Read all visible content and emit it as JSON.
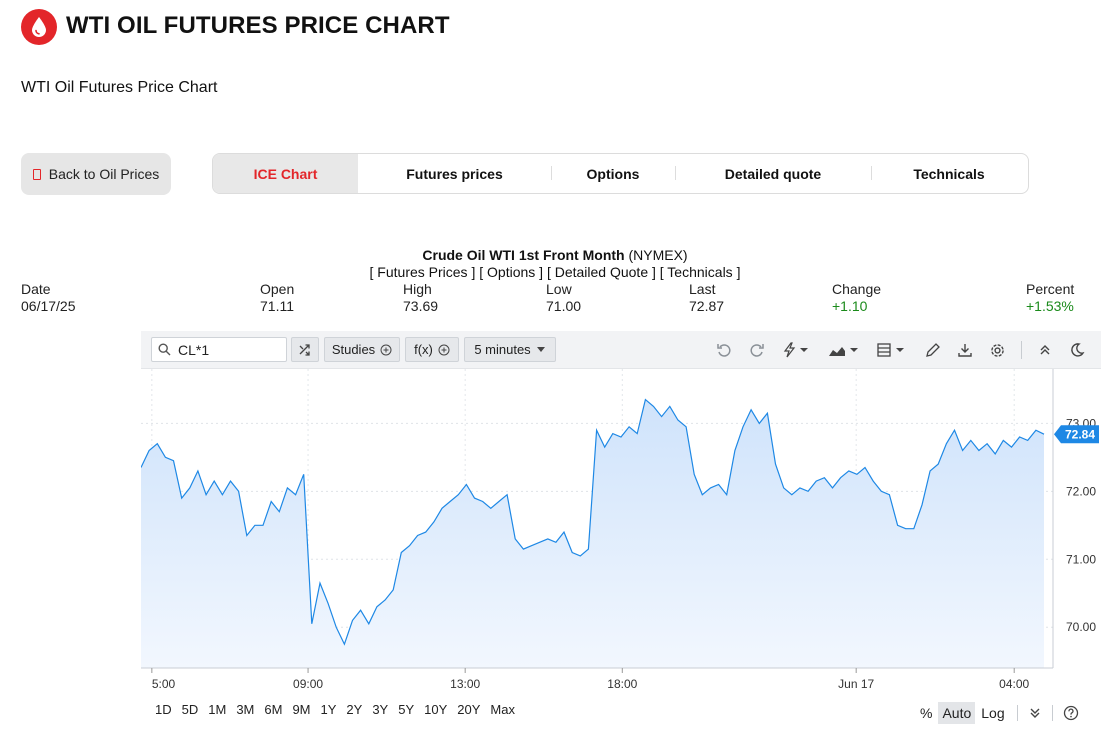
{
  "header": {
    "title": "WTI OIL FUTURES PRICE CHART",
    "subtitle": "WTI Oil Futures Price Chart"
  },
  "back_button": {
    "label": "Back to Oil Prices"
  },
  "tabs": [
    {
      "label": "ICE Chart",
      "active": true
    },
    {
      "label": "Futures prices"
    },
    {
      "label": "Options"
    },
    {
      "label": "Detailed quote"
    },
    {
      "label": "Technicals"
    }
  ],
  "quote": {
    "name": "Crude Oil WTI 1st Front Month",
    "exchange": "(NYMEX)",
    "links": [
      "[ Futures Prices ]",
      "[ Options ]",
      "[ Detailed Quote ]",
      "[ Technicals ]"
    ],
    "fields": [
      {
        "label": "Date",
        "value": "06/17/25"
      },
      {
        "label": "Open",
        "value": "71.11"
      },
      {
        "label": "High",
        "value": "73.69"
      },
      {
        "label": "Low",
        "value": "71.00"
      },
      {
        "label": "Last",
        "value": "72.87"
      },
      {
        "label": "Change",
        "value": "+1.10"
      },
      {
        "label": "Percent",
        "value": "+1.53%"
      }
    ]
  },
  "toolbar": {
    "symbol": "CL*1",
    "studies_label": "Studies",
    "fx_label": "f(x)",
    "interval_label": "5 minutes"
  },
  "range_buttons": [
    "1D",
    "5D",
    "1M",
    "3M",
    "6M",
    "9M",
    "1Y",
    "2Y",
    "3Y",
    "5Y",
    "10Y",
    "20Y",
    "Max"
  ],
  "scale_buttons": {
    "percent": "%",
    "auto": "Auto",
    "log": "Log"
  },
  "colors": {
    "accent_red": "#e3262a",
    "line_blue": "#1e88e5",
    "positive_green": "#1a8a1a"
  },
  "chart_data": {
    "type": "area",
    "symbol": "CL*1",
    "x_tick_labels": [
      "05:00",
      "09:00",
      "13:00",
      "18:00",
      "Jun 17",
      "04:00"
    ],
    "y_tick_labels": [
      "70.00",
      "71.00",
      "72.00",
      "73.00"
    ],
    "ylim": [
      69.4,
      73.8
    ],
    "last_value_label": "72.84",
    "grid": true,
    "points": [
      {
        "x": "04:45",
        "y": 72.35
      },
      {
        "x": "05:00",
        "y": 72.6
      },
      {
        "x": "05:10",
        "y": 72.7
      },
      {
        "x": "05:20",
        "y": 72.5
      },
      {
        "x": "05:35",
        "y": 72.45
      },
      {
        "x": "05:50",
        "y": 71.9
      },
      {
        "x": "06:05",
        "y": 72.05
      },
      {
        "x": "06:20",
        "y": 72.3
      },
      {
        "x": "06:35",
        "y": 71.95
      },
      {
        "x": "06:50",
        "y": 72.15
      },
      {
        "x": "07:05",
        "y": 71.95
      },
      {
        "x": "07:20",
        "y": 72.15
      },
      {
        "x": "07:35",
        "y": 72.0
      },
      {
        "x": "07:45",
        "y": 71.35
      },
      {
        "x": "07:55",
        "y": 71.5
      },
      {
        "x": "08:05",
        "y": 71.5
      },
      {
        "x": "08:15",
        "y": 71.85
      },
      {
        "x": "08:25",
        "y": 71.7
      },
      {
        "x": "08:35",
        "y": 72.05
      },
      {
        "x": "08:45",
        "y": 71.95
      },
      {
        "x": "08:55",
        "y": 72.25
      },
      {
        "x": "09:00",
        "y": 70.05
      },
      {
        "x": "09:05",
        "y": 70.65
      },
      {
        "x": "09:15",
        "y": 70.35
      },
      {
        "x": "09:25",
        "y": 70.0
      },
      {
        "x": "09:30",
        "y": 69.75
      },
      {
        "x": "09:40",
        "y": 70.1
      },
      {
        "x": "09:55",
        "y": 70.25
      },
      {
        "x": "10:05",
        "y": 70.05
      },
      {
        "x": "10:15",
        "y": 70.3
      },
      {
        "x": "10:25",
        "y": 70.4
      },
      {
        "x": "10:35",
        "y": 70.55
      },
      {
        "x": "10:45",
        "y": 71.1
      },
      {
        "x": "10:55",
        "y": 71.2
      },
      {
        "x": "11:05",
        "y": 71.35
      },
      {
        "x": "11:20",
        "y": 71.4
      },
      {
        "x": "11:35",
        "y": 71.55
      },
      {
        "x": "11:50",
        "y": 71.75
      },
      {
        "x": "12:05",
        "y": 71.85
      },
      {
        "x": "12:20",
        "y": 71.95
      },
      {
        "x": "12:35",
        "y": 72.1
      },
      {
        "x": "12:50",
        "y": 71.9
      },
      {
        "x": "13:05",
        "y": 71.85
      },
      {
        "x": "13:20",
        "y": 71.75
      },
      {
        "x": "13:40",
        "y": 71.85
      },
      {
        "x": "14:00",
        "y": 71.95
      },
      {
        "x": "14:20",
        "y": 71.3
      },
      {
        "x": "14:40",
        "y": 71.15
      },
      {
        "x": "15:00",
        "y": 71.2
      },
      {
        "x": "15:20",
        "y": 71.25
      },
      {
        "x": "15:40",
        "y": 71.3
      },
      {
        "x": "16:00",
        "y": 71.25
      },
      {
        "x": "16:20",
        "y": 71.4
      },
      {
        "x": "16:40",
        "y": 71.1
      },
      {
        "x": "17:00",
        "y": 71.05
      },
      {
        "x": "17:20",
        "y": 71.15
      },
      {
        "x": "17:35",
        "y": 72.9
      },
      {
        "x": "17:50",
        "y": 72.65
      },
      {
        "x": "18:05",
        "y": 72.85
      },
      {
        "x": "18:25",
        "y": 72.8
      },
      {
        "x": "18:45",
        "y": 72.95
      },
      {
        "x": "19:00",
        "y": 72.85
      },
      {
        "x": "19:10",
        "y": 73.35
      },
      {
        "x": "19:20",
        "y": 73.25
      },
      {
        "x": "19:30",
        "y": 73.1
      },
      {
        "x": "19:45",
        "y": 73.25
      },
      {
        "x": "20:00",
        "y": 73.05
      },
      {
        "x": "20:15",
        "y": 72.95
      },
      {
        "x": "20:30",
        "y": 72.25
      },
      {
        "x": "20:45",
        "y": 71.95
      },
      {
        "x": "21:00",
        "y": 72.05
      },
      {
        "x": "21:20",
        "y": 72.1
      },
      {
        "x": "21:40",
        "y": 71.95
      },
      {
        "x": "22:00",
        "y": 72.6
      },
      {
        "x": "22:10",
        "y": 72.95
      },
      {
        "x": "22:20",
        "y": 73.2
      },
      {
        "x": "22:30",
        "y": 73.0
      },
      {
        "x": "22:40",
        "y": 73.15
      },
      {
        "x": "22:55",
        "y": 72.4
      },
      {
        "x": "23:10",
        "y": 72.05
      },
      {
        "x": "23:25",
        "y": 71.95
      },
      {
        "x": "23:40",
        "y": 72.05
      },
      {
        "x": "00:00",
        "y": 72.0
      },
      {
        "x": "00:15",
        "y": 72.15
      },
      {
        "x": "00:30",
        "y": 72.2
      },
      {
        "x": "00:50",
        "y": 72.05
      },
      {
        "x": "01:05",
        "y": 72.2
      },
      {
        "x": "01:20",
        "y": 72.3
      },
      {
        "x": "01:40",
        "y": 72.25
      },
      {
        "x": "01:55",
        "y": 72.35
      },
      {
        "x": "02:10",
        "y": 72.15
      },
      {
        "x": "02:25",
        "y": 72.0
      },
      {
        "x": "02:40",
        "y": 71.95
      },
      {
        "x": "02:55",
        "y": 71.5
      },
      {
        "x": "03:05",
        "y": 71.45
      },
      {
        "x": "03:15",
        "y": 71.45
      },
      {
        "x": "03:30",
        "y": 71.8
      },
      {
        "x": "03:40",
        "y": 72.3
      },
      {
        "x": "03:50",
        "y": 72.4
      },
      {
        "x": "04:00",
        "y": 72.7
      },
      {
        "x": "04:10",
        "y": 72.9
      },
      {
        "x": "04:20",
        "y": 72.6
      },
      {
        "x": "04:30",
        "y": 72.75
      },
      {
        "x": "04:45",
        "y": 72.6
      },
      {
        "x": "05:00",
        "y": 72.7
      },
      {
        "x": "05:15",
        "y": 72.55
      },
      {
        "x": "05:30",
        "y": 72.75
      },
      {
        "x": "05:40",
        "y": 72.65
      },
      {
        "x": "05:55",
        "y": 72.8
      },
      {
        "x": "06:05",
        "y": 72.75
      },
      {
        "x": "06:15",
        "y": 72.9
      },
      {
        "x": "06:25",
        "y": 72.84
      }
    ]
  }
}
